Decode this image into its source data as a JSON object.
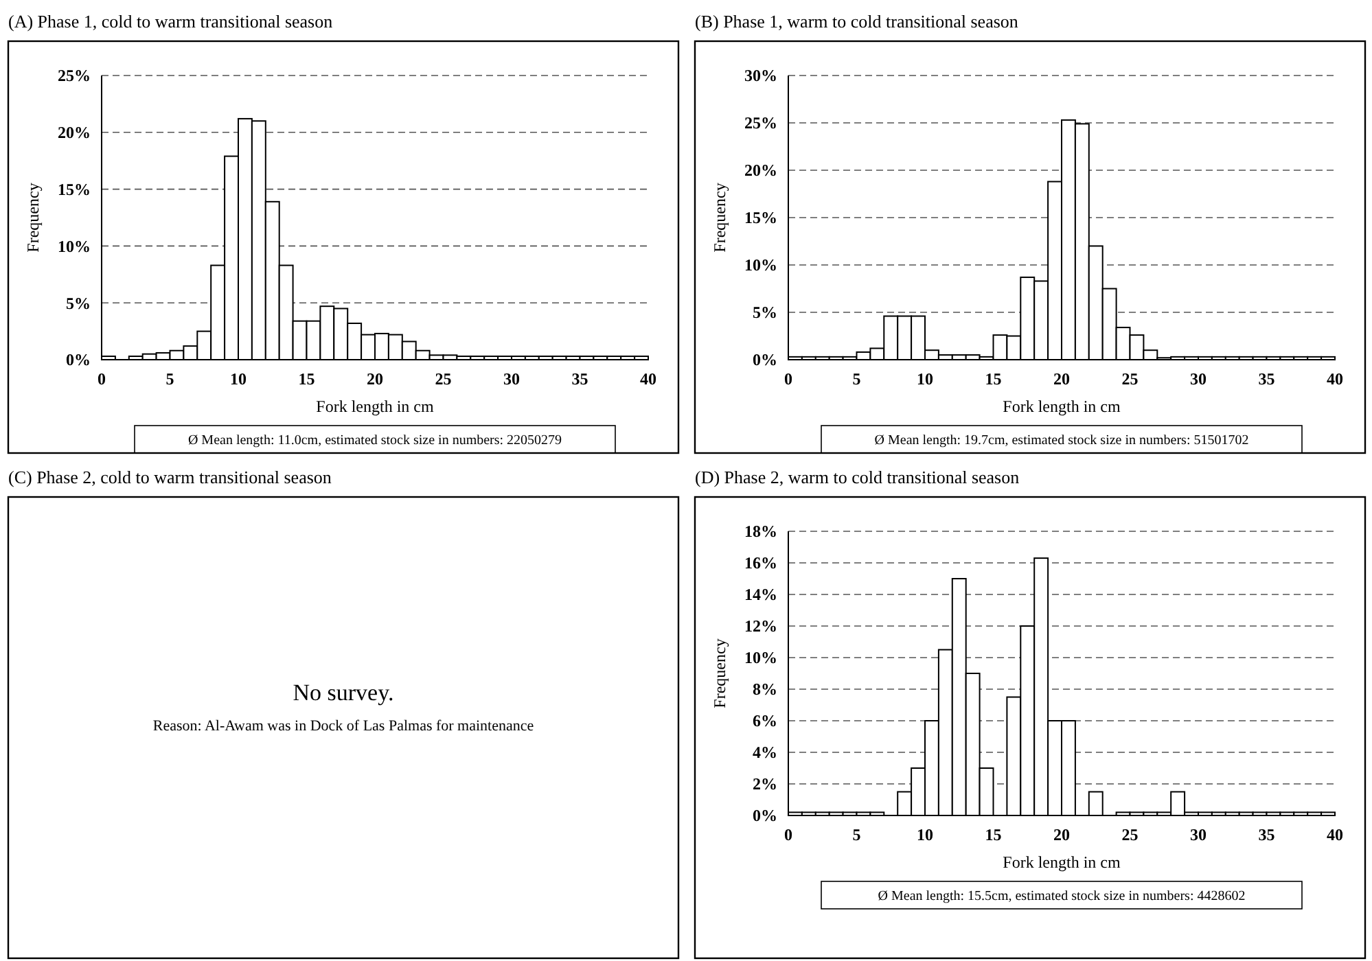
{
  "chart_data": [
    {
      "type": "histogram",
      "title": "(A) Phase 1, cold to warm transitional season",
      "xlabel": "Fork length in cm",
      "ylabel": "Frequency",
      "annotations": [
        "Ø Mean length: 11.0cm, estimated stock size in numbers: 22050279"
      ],
      "bins": [
        0,
        1,
        2,
        3,
        4,
        5,
        6,
        7,
        8,
        9,
        10,
        11,
        12,
        13,
        14,
        15,
        16,
        17,
        18,
        19,
        20,
        21,
        22,
        23,
        24,
        25,
        26,
        27,
        28,
        29,
        30,
        31,
        32,
        33,
        34,
        35,
        36,
        37,
        38,
        39,
        40
      ],
      "values": [
        0.3,
        0,
        0.3,
        0.5,
        0.6,
        0.8,
        1.2,
        2.5,
        8.3,
        17.9,
        21.2,
        21.0,
        13.9,
        8.3,
        3.4,
        3.4,
        4.7,
        4.5,
        3.2,
        2.2,
        2.3,
        2.2,
        1.6,
        0.8,
        0.4,
        0.4,
        0.3,
        0.3,
        0.3,
        0.3,
        0.3,
        0.3,
        0.3,
        0.3,
        0.3,
        0.3,
        0.3,
        0.3,
        0.3,
        0.3
      ],
      "color": "#ffffff",
      "xlim": [
        0,
        40
      ],
      "xticks": [
        0,
        5,
        10,
        15,
        20,
        25,
        30,
        35,
        40
      ],
      "ylim": [
        0,
        25
      ],
      "yticks": [
        {
          "value": 0,
          "label": "0%"
        },
        {
          "value": 5,
          "label": "5%"
        },
        {
          "value": 10,
          "label": "10%"
        },
        {
          "value": 15,
          "label": "15%"
        },
        {
          "value": 20,
          "label": "20%"
        },
        {
          "value": 25,
          "label": "25%"
        }
      ],
      "grid": "y",
      "line_style": "dashed"
    },
    {
      "type": "histogram",
      "title": "(B) Phase 1, warm to cold transitional season",
      "xlabel": "Fork length in cm",
      "ylabel": "Frequency",
      "annotations": [
        "Ø Mean length: 19.7cm, estimated stock size in numbers: 51501702"
      ],
      "bins": [
        0,
        1,
        2,
        3,
        4,
        5,
        6,
        7,
        8,
        9,
        10,
        11,
        12,
        13,
        14,
        15,
        16,
        17,
        18,
        19,
        20,
        21,
        22,
        23,
        24,
        25,
        26,
        27,
        28,
        29,
        30,
        31,
        32,
        33,
        34,
        35,
        36,
        37,
        38,
        39,
        40
      ],
      "values": [
        0.3,
        0.3,
        0.3,
        0.3,
        0.3,
        0.8,
        1.2,
        4.6,
        4.6,
        4.6,
        1.0,
        0.5,
        0.5,
        0.5,
        0.3,
        2.6,
        2.5,
        8.7,
        8.3,
        18.8,
        25.3,
        24.9,
        12.0,
        7.5,
        3.4,
        2.6,
        1.0,
        0.2,
        0.3,
        0.3,
        0.3,
        0.3,
        0.3,
        0.3,
        0.3,
        0.3,
        0.3,
        0.3,
        0.3,
        0.3
      ],
      "color": "#ffffff",
      "xlim": [
        0,
        40
      ],
      "xticks": [
        0,
        5,
        10,
        15,
        20,
        25,
        30,
        35,
        40
      ],
      "ylim": [
        0,
        30
      ],
      "yticks": [
        {
          "value": 0,
          "label": "0%"
        },
        {
          "value": 5,
          "label": "5%"
        },
        {
          "value": 10,
          "label": "10%"
        },
        {
          "value": 15,
          "label": "15%"
        },
        {
          "value": 20,
          "label": "20%"
        },
        {
          "value": 25,
          "label": "25%"
        },
        {
          "value": 30,
          "label": "30%"
        }
      ],
      "grid": "y",
      "line_style": "dashed"
    },
    {
      "type": "other",
      "title": "(C) Phase 2, cold to warm transitional season",
      "annotations": [
        "No survey.",
        "Reason: Al-Awam was in Dock of Las Palmas for maintenance"
      ]
    },
    {
      "type": "histogram",
      "title": "(D) Phase 2, warm to cold transitional season",
      "xlabel": "Fork length in cm",
      "ylabel": "Frequency",
      "annotations": [
        "Ø Mean length: 15.5cm, estimated stock size in numbers: 4428602"
      ],
      "bins": [
        0,
        1,
        2,
        3,
        4,
        5,
        6,
        7,
        8,
        9,
        10,
        11,
        12,
        13,
        14,
        15,
        16,
        17,
        18,
        19,
        20,
        21,
        22,
        23,
        24,
        25,
        26,
        27,
        28,
        29,
        30,
        31,
        32,
        33,
        34,
        35,
        36,
        37,
        38,
        39,
        40
      ],
      "values": [
        0.2,
        0.2,
        0.2,
        0.2,
        0.2,
        0.2,
        0.2,
        0,
        1.5,
        3.0,
        6.0,
        10.5,
        15.0,
        9.0,
        3.0,
        0,
        7.5,
        12.0,
        16.3,
        6.0,
        6.0,
        0,
        1.5,
        0,
        0.2,
        0.2,
        0.2,
        0.2,
        1.5,
        0.2,
        0.2,
        0.2,
        0.2,
        0.2,
        0.2,
        0.2,
        0.2,
        0.2,
        0.2,
        0.2
      ],
      "color": "#ffffff",
      "xlim": [
        0,
        40
      ],
      "xticks": [
        0,
        5,
        10,
        15,
        20,
        25,
        30,
        35,
        40
      ],
      "ylim": [
        0,
        18
      ],
      "yticks": [
        {
          "value": 0,
          "label": "0%"
        },
        {
          "value": 2,
          "label": "2%"
        },
        {
          "value": 4,
          "label": "4%"
        },
        {
          "value": 6,
          "label": "6%"
        },
        {
          "value": 8,
          "label": "8%"
        },
        {
          "value": 10,
          "label": "10%"
        },
        {
          "value": 12,
          "label": "12%"
        },
        {
          "value": 14,
          "label": "14%"
        },
        {
          "value": 16,
          "label": "16%"
        },
        {
          "value": 18,
          "label": "18%"
        }
      ],
      "grid": "y",
      "line_style": "dashed"
    }
  ]
}
